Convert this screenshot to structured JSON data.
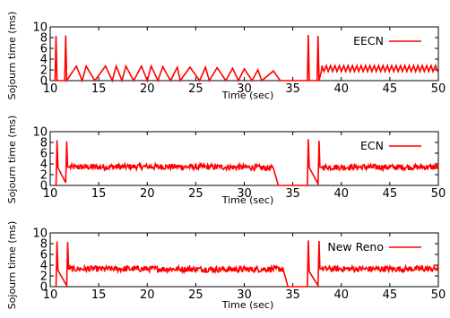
{
  "chart_data": [
    {
      "type": "line",
      "xlabel": "Time (sec)",
      "ylabel": "Sojourn time (ms)",
      "xlim": [
        10,
        50
      ],
      "ylim": [
        0,
        10
      ],
      "xticks": [
        "10",
        "15",
        "20",
        "25",
        "30",
        "35",
        "40",
        "45",
        "50"
      ],
      "yticks": [
        "0",
        "2",
        "4",
        "6",
        "8",
        "10"
      ],
      "series": [
        {
          "name": "EECN",
          "color": "#ff0000",
          "pattern": "sawtooth",
          "x": [
            10.5,
            10.6,
            10.7,
            11.5,
            11.6,
            11.7,
            12.7,
            13.3,
            13.7,
            14.6,
            15.7,
            16.4,
            16.8,
            17.4,
            17.8,
            18.6,
            19.4,
            20.0,
            20.4,
            21.1,
            21.6,
            22.4,
            23.1,
            23.4,
            24.4,
            25.4,
            26.0,
            26.4,
            27.2,
            28.1,
            28.8,
            29.4,
            30.0,
            30.8,
            31.4,
            31.8,
            33.0,
            33.7,
            36.5,
            36.6,
            36.7,
            37.5,
            37.6,
            37.7,
            38.0,
            50.0
          ],
          "y": [
            0,
            8.3,
            0,
            0,
            8.4,
            0,
            2.7,
            0,
            2.7,
            0,
            2.7,
            0,
            2.7,
            0,
            2.7,
            0,
            2.7,
            0,
            2.7,
            0,
            2.6,
            0,
            2.5,
            0,
            2.5,
            0,
            2.5,
            0,
            2.4,
            0,
            2.3,
            0,
            2.2,
            0,
            2.0,
            0,
            1.8,
            0,
            0,
            8.5,
            0,
            0,
            8.3,
            0,
            2.2,
            2.2
          ]
        }
      ]
    },
    {
      "type": "line",
      "xlabel": "Time (sec)",
      "ylabel": "Sojourn time (ms)",
      "xlim": [
        10,
        50
      ],
      "ylim": [
        0,
        10
      ],
      "xticks": [
        "10",
        "15",
        "20",
        "25",
        "30",
        "35",
        "40",
        "45",
        "50"
      ],
      "yticks": [
        "0",
        "2",
        "4",
        "6",
        "8",
        "10"
      ],
      "series": [
        {
          "name": "ECN",
          "color": "#ff0000",
          "pattern": "noisy",
          "x": [
            10.6,
            10.7,
            10.8,
            11.6,
            11.7,
            11.8,
            12.0,
            20.0,
            30.0,
            33.0,
            33.5,
            36.5,
            36.6,
            36.7,
            37.6,
            37.7,
            37.8,
            38.0,
            50.0
          ],
          "y": [
            0,
            8.4,
            3.3,
            0.5,
            8.2,
            3.4,
            3.4,
            3.5,
            3.4,
            3.2,
            0,
            0,
            8.6,
            3.3,
            0.3,
            8.3,
            3.4,
            3.4,
            3.4
          ]
        }
      ]
    },
    {
      "type": "line",
      "xlabel": "Time (sec)",
      "ylabel": "Sojourn time (ms)",
      "xlim": [
        10,
        50
      ],
      "ylim": [
        0,
        10
      ],
      "xticks": [
        "10",
        "15",
        "20",
        "25",
        "30",
        "35",
        "40",
        "45",
        "50"
      ],
      "yticks": [
        "0",
        "2",
        "4",
        "6",
        "8",
        "10"
      ],
      "series": [
        {
          "name": "New Reno",
          "color": "#ff0000",
          "pattern": "noisy",
          "x": [
            10.6,
            10.7,
            10.8,
            11.7,
            11.8,
            11.9,
            12.0,
            20.0,
            30.0,
            34.0,
            34.5,
            36.5,
            36.6,
            36.7,
            37.6,
            37.7,
            37.8,
            38.0,
            50.0
          ],
          "y": [
            0,
            8.4,
            3.0,
            0.2,
            8.3,
            3.3,
            3.3,
            3.3,
            3.2,
            3.3,
            0,
            0,
            8.6,
            2.8,
            0.2,
            8.5,
            3.3,
            3.3,
            3.3
          ]
        }
      ]
    }
  ]
}
